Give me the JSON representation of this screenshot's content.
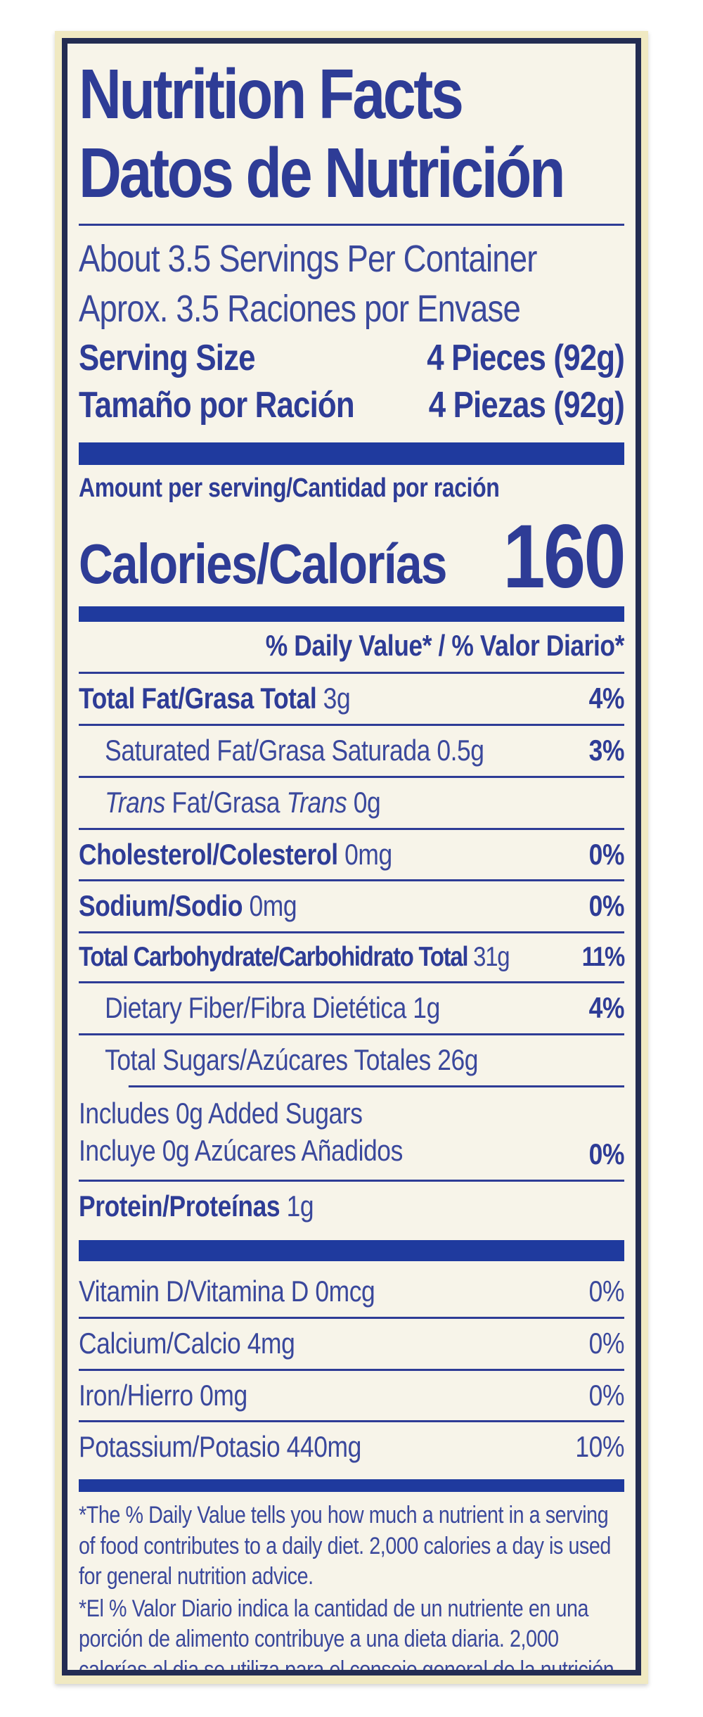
{
  "label": {
    "title": {
      "en": "Nutrition Facts",
      "es": "Datos de Nutrición"
    },
    "servings": {
      "en": "About 3.5 Servings Per Container",
      "es": "Aprox. 3.5 Raciones por Envase"
    },
    "serving_size": {
      "label_en": "Serving Size",
      "value_en": "4 Pieces (92g)",
      "label_es": "Tamaño por Ración",
      "value_es": "4 Piezas (92g)"
    },
    "amount_per_serving": "Amount per serving/Cantidad por ración",
    "calories": {
      "label": "Calories/Calorías",
      "value": "160"
    },
    "daily_value_header": "% Daily Value* / % Valor Diario*",
    "rows": {
      "total_fat": {
        "name": "Total Fat/Grasa Total",
        "amount": " 3g",
        "dv": "4%"
      },
      "saturated_fat": {
        "name": "Saturated Fat/Grasa Saturada 0.5g",
        "dv": "3%"
      },
      "trans_fat": {
        "i1": "Trans",
        "r1": " Fat/Grasa ",
        "i2": "Trans",
        "r2": " 0g"
      },
      "cholesterol": {
        "name": "Cholesterol/Colesterol",
        "amount": " 0mg",
        "dv": "0%"
      },
      "sodium": {
        "name": "Sodium/Sodio",
        "amount": " 0mg",
        "dv": "0%"
      },
      "total_carbohydrate": {
        "name": "Total Carbohydrate/Carbohidrato Total",
        "amount": " 31g",
        "dv": "11%"
      },
      "dietary_fiber": {
        "name": "Dietary Fiber/Fibra Dietética 1g",
        "dv": "4%"
      },
      "total_sugars": {
        "name": "Total Sugars/Azúcares Totales 26g"
      },
      "added_sugars": {
        "line1": "Includes 0g Added Sugars",
        "line2": "Incluye 0g Azúcares Añadidos",
        "dv": "0%"
      },
      "protein": {
        "name": "Protein/Proteínas",
        "amount": " 1g"
      }
    },
    "micros": {
      "vitamin_d": {
        "name": "Vitamin D/Vitamina D 0mcg",
        "dv": "0%"
      },
      "calcium": {
        "name": "Calcium/Calcio 4mg",
        "dv": "0%"
      },
      "iron": {
        "name": "Iron/Hierro 0mg",
        "dv": "0%"
      },
      "potassium": {
        "name": "Potassium/Potasio 440mg",
        "dv": "10%"
      }
    },
    "footnotes": {
      "en": "*The % Daily Value tells you how much a nutrient in a serving of food contributes to a daily diet. 2,000 calories a day is used for general nutrition advice.",
      "es": "*El % Valor Diario indica la cantidad de un nutriente en una porción de alimento contribuye a una dieta diaria. 2,000 calorías al dia se utiliza para el consejo general de la nutrición."
    },
    "colors": {
      "ink_blue": "#2e3c96",
      "bar_blue": "#1f3a9e",
      "border_navy": "#232c52",
      "label_cream": "#f0e9c2",
      "paper": "#f7f4e9"
    }
  }
}
